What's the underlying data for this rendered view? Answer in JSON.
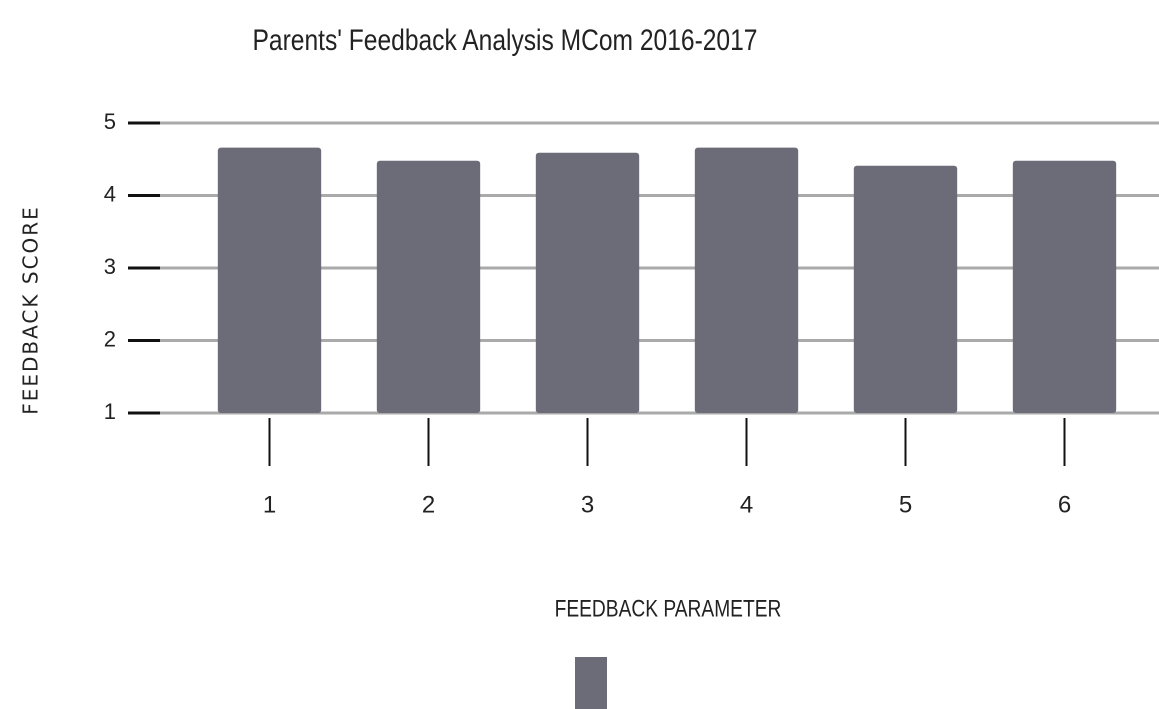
{
  "chart_data": {
    "type": "bar",
    "title": "Parents' Feedback Analysis MCom 2016-2017",
    "x_label": "FEEDBACK PARAMETER",
    "y_label": "FEEDBACK SCORE",
    "categories": [
      "1",
      "2",
      "3",
      "4",
      "5",
      "6"
    ],
    "values": [
      4.66,
      4.48,
      4.59,
      4.66,
      4.41,
      4.48
    ],
    "color": "#6c6c78",
    "ylim": [
      1,
      5
    ],
    "yticks": [
      1,
      2,
      3,
      4,
      5
    ],
    "grid": true
  }
}
